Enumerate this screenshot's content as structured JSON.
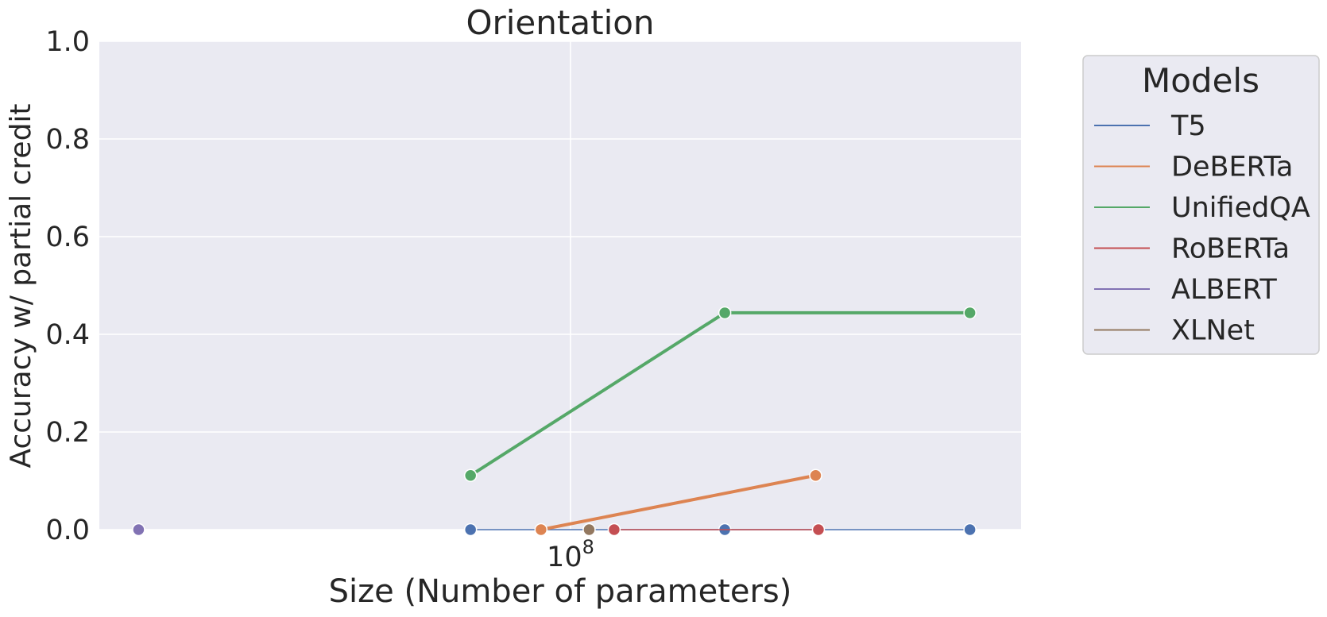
{
  "chart_data": {
    "type": "line",
    "title": "Orientation",
    "xlabel": "Size (Number of parameters)",
    "ylabel": "Accuracy w/ partial credit",
    "x_scale": "log",
    "xlim": [
      9000000,
      1000000000
    ],
    "ylim": [
      0,
      1.0
    ],
    "y_ticks": [
      "0.0",
      "0.2",
      "0.4",
      "0.6",
      "0.8",
      "1.0"
    ],
    "x_tick_base": "10",
    "x_tick_exp": "8",
    "grid": true,
    "legend": {
      "title": "Models",
      "placement": "outside-right"
    },
    "series": [
      {
        "name": "T5",
        "color": "#4c72b0",
        "width": 1.5,
        "x": [
          60000000,
          220000000,
          770000000
        ],
        "y": [
          0,
          0,
          0
        ]
      },
      {
        "name": "DeBERTa",
        "color": "#dd8452",
        "width": 4,
        "x": [
          86000000,
          350000000
        ],
        "y": [
          0,
          0.111
        ]
      },
      {
        "name": "UnifiedQA",
        "color": "#55a868",
        "width": 4,
        "x": [
          60000000,
          220000000,
          770000000
        ],
        "y": [
          0.111,
          0.444,
          0.444
        ]
      },
      {
        "name": "RoBERTa",
        "color": "#c44e52",
        "width": 1.5,
        "x": [
          125000000,
          355000000
        ],
        "y": [
          0,
          0
        ]
      },
      {
        "name": "ALBERT",
        "color": "#8172b3",
        "width": 1.5,
        "x": [
          11000000
        ],
        "y": [
          0
        ]
      },
      {
        "name": "XLNet",
        "color": "#937860",
        "width": 1.5,
        "x": [
          110000000
        ],
        "y": [
          0
        ]
      }
    ]
  }
}
